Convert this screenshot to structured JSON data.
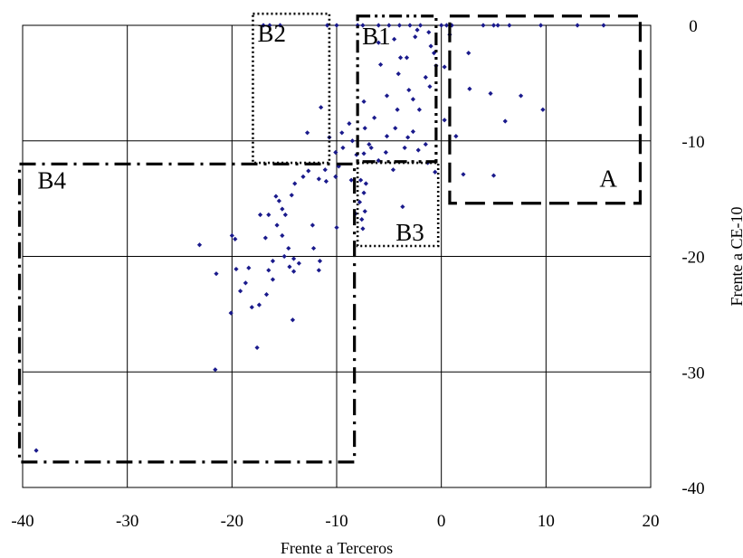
{
  "chart_data": {
    "type": "scatter",
    "xlabel": "Frente a Terceros",
    "ylabel": "Frente a CE-10",
    "xlim": [
      -40,
      20
    ],
    "ylim": [
      -40,
      0
    ],
    "xticks": [
      -40,
      -30,
      -20,
      -10,
      0,
      10,
      20
    ],
    "yticks": [
      0,
      -10,
      -20,
      -30,
      -40
    ],
    "xtick_labels": [
      "-40",
      "-30",
      "-20",
      "-10",
      "0",
      "10",
      "20"
    ],
    "ytick_labels": [
      "0",
      "-10",
      "-20",
      "-30",
      "-40"
    ],
    "grid": true,
    "y_axis_side": "right",
    "marker_color": "#1a1a8c",
    "regions": [
      {
        "name": "A",
        "style": "dashed",
        "x": [
          0.8,
          19
        ],
        "y": [
          -15.4,
          0.8
        ],
        "label": "A"
      },
      {
        "name": "B1",
        "style": "dash-dot-dot",
        "x": [
          -8,
          -0.5
        ],
        "y": [
          -11.8,
          0.8
        ],
        "label": "B1"
      },
      {
        "name": "B2",
        "style": "dotted",
        "x": [
          -18,
          -10.7
        ],
        "y": [
          -11.9,
          1.0
        ],
        "label": "B2"
      },
      {
        "name": "B3",
        "style": "dotted",
        "x": [
          -8,
          -0.3
        ],
        "y": [
          -19.1,
          -11.9
        ],
        "label": "B3"
      },
      {
        "name": "B4",
        "style": "dash-dot",
        "x": [
          -40.3,
          -8.3
        ],
        "y": [
          -37.8,
          -12.0
        ],
        "label": "B4"
      }
    ],
    "points": [
      [
        -17,
        0
      ],
      [
        -16.4,
        0
      ],
      [
        -15.4,
        0
      ],
      [
        -10.9,
        0
      ],
      [
        -10,
        0
      ],
      [
        -8,
        0
      ],
      [
        -7.5,
        0
      ],
      [
        -6,
        0
      ],
      [
        -5,
        0
      ],
      [
        -4,
        0
      ],
      [
        -3,
        0
      ],
      [
        -2,
        0
      ],
      [
        0,
        0
      ],
      [
        0.5,
        0
      ],
      [
        1,
        0
      ],
      [
        4,
        0
      ],
      [
        5,
        0
      ],
      [
        5.4,
        0
      ],
      [
        6.5,
        0
      ],
      [
        9.5,
        0
      ],
      [
        13,
        0
      ],
      [
        15.5,
        0
      ],
      [
        -2.3,
        -0.4
      ],
      [
        -1.2,
        -0.6
      ],
      [
        -2.5,
        -1.0
      ],
      [
        0.8,
        -0.8
      ],
      [
        -1,
        -1.8
      ],
      [
        -4.5,
        -1.2
      ],
      [
        -6,
        -1.5
      ],
      [
        -3.9,
        -2.8
      ],
      [
        -3.3,
        -2.8
      ],
      [
        -0.7,
        -2.4
      ],
      [
        2.6,
        -2.4
      ],
      [
        -5.8,
        -3.4
      ],
      [
        -4.1,
        -4.2
      ],
      [
        -1.5,
        -4.5
      ],
      [
        -0.5,
        -3.5
      ],
      [
        0.3,
        -3.6
      ],
      [
        -3.1,
        -5.6
      ],
      [
        -5.2,
        -6.1
      ],
      [
        -7.4,
        -6.6
      ],
      [
        -2.7,
        -6.4
      ],
      [
        -1.1,
        -5.3
      ],
      [
        2.7,
        -5.5
      ],
      [
        -2.1,
        -7.3
      ],
      [
        -4.2,
        -7.3
      ],
      [
        -6.4,
        -8.0
      ],
      [
        -7.3,
        -8.9
      ],
      [
        -4.4,
        -8.9
      ],
      [
        -5.2,
        -9.6
      ],
      [
        -3.2,
        -9.7
      ],
      [
        -6.7,
        -10.6
      ],
      [
        -5.3,
        -11.0
      ],
      [
        -7.4,
        -11.1
      ],
      [
        -8.1,
        -11.2
      ],
      [
        -6.9,
        -10.3
      ],
      [
        -2.2,
        -10.8
      ],
      [
        -1.5,
        -10.3
      ],
      [
        0.3,
        -8.2
      ],
      [
        1.4,
        -9.6
      ],
      [
        2.1,
        -12.9
      ],
      [
        5.0,
        -13.0
      ],
      [
        6.1,
        -8.3
      ],
      [
        7.6,
        -6.1
      ],
      [
        9.7,
        -7.3
      ],
      [
        4.7,
        -5.9
      ],
      [
        -8.8,
        -8.5
      ],
      [
        -9.5,
        -9.3
      ],
      [
        -12.8,
        -9.3
      ],
      [
        -10.7,
        -9.7
      ],
      [
        -8.5,
        -10.0
      ],
      [
        -9.4,
        -10.6
      ],
      [
        -10.1,
        -11.0
      ],
      [
        -11.5,
        -7.1
      ],
      [
        -9.8,
        -12.2
      ],
      [
        -11.1,
        -12.5
      ],
      [
        -12.7,
        -12.6
      ],
      [
        -13.2,
        -13.1
      ],
      [
        -10.1,
        -13.1
      ],
      [
        -8.6,
        -13.4
      ],
      [
        -14.0,
        -13.7
      ],
      [
        -14.3,
        -14.7
      ],
      [
        -11.7,
        -13.3
      ],
      [
        -15.8,
        -14.8
      ],
      [
        -15.5,
        -15.2
      ],
      [
        -15.2,
        -15.9
      ],
      [
        -14.9,
        -16.4
      ],
      [
        -16.5,
        -16.4
      ],
      [
        -17.3,
        -16.4
      ],
      [
        -15.7,
        -17.3
      ],
      [
        -12.3,
        -17.3
      ],
      [
        -10.0,
        -17.5
      ],
      [
        -11.0,
        -13.5
      ],
      [
        -15.2,
        -18.2
      ],
      [
        -16.8,
        -18.4
      ],
      [
        -20.0,
        -18.2
      ],
      [
        -19.7,
        -18.5
      ],
      [
        -14.6,
        -19.3
      ],
      [
        -12.2,
        -19.3
      ],
      [
        -23.1,
        -19.0
      ],
      [
        -15.0,
        -20.0
      ],
      [
        -14.1,
        -20.2
      ],
      [
        -13.6,
        -20.6
      ],
      [
        -14.5,
        -20.9
      ],
      [
        -11.6,
        -20.4
      ],
      [
        -16.1,
        -20.4
      ],
      [
        -16.5,
        -21.2
      ],
      [
        -18.4,
        -21.0
      ],
      [
        -19.6,
        -21.1
      ],
      [
        -14.1,
        -21.3
      ],
      [
        -21.5,
        -21.5
      ],
      [
        -11.7,
        -21.2
      ],
      [
        -16.1,
        -22.0
      ],
      [
        -18.7,
        -22.3
      ],
      [
        -19.2,
        -23.0
      ],
      [
        -16.7,
        -23.3
      ],
      [
        -17.4,
        -24.2
      ],
      [
        -18.1,
        -24.4
      ],
      [
        -20.1,
        -24.9
      ],
      [
        -14.2,
        -25.5
      ],
      [
        -17.6,
        -27.9
      ],
      [
        -21.6,
        -29.8
      ],
      [
        -38.7,
        -36.8
      ],
      [
        -7.7,
        -13.4
      ],
      [
        -7.2,
        -13.7
      ],
      [
        -7.4,
        -14.5
      ],
      [
        -7.8,
        -15.3
      ],
      [
        -7.3,
        -16.1
      ],
      [
        -7.6,
        -16.8
      ],
      [
        -7.5,
        -17.6
      ],
      [
        -8.2,
        -16.3
      ],
      [
        -3.7,
        -15.7
      ],
      [
        -6.0,
        -11.7
      ],
      [
        -4.6,
        -12.5
      ],
      [
        -1.3,
        -11.9
      ],
      [
        -0.6,
        -12.7
      ],
      [
        -3.5,
        -10.6
      ],
      [
        -2.7,
        -9.2
      ]
    ]
  }
}
